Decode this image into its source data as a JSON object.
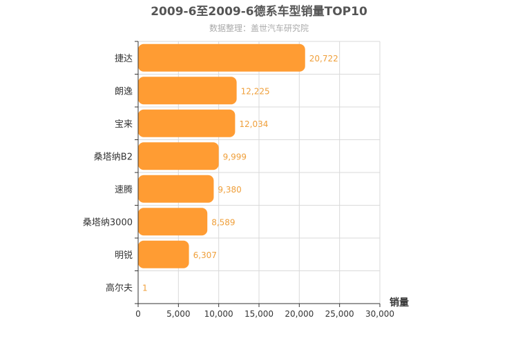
{
  "chart_data": {
    "type": "bar",
    "orientation": "horizontal",
    "title": "2009-6至2009-6德系车型销量TOP10",
    "subtitle": "数据整理：盖世汽车研究院",
    "categories": [
      "捷达",
      "朗逸",
      "宝来",
      "桑塔纳B2",
      "速腾",
      "桑塔纳3000",
      "明锐",
      "高尔夫"
    ],
    "values": [
      20722,
      12225,
      12034,
      9999,
      9380,
      8589,
      6307,
      1
    ],
    "value_labels": [
      "20,722",
      "12,225",
      "12,034",
      "9,999",
      "9,380",
      "8,589",
      "6,307",
      "1"
    ],
    "xlim": [
      0,
      30000
    ],
    "ticks": [
      0,
      5000,
      10000,
      15000,
      20000,
      25000,
      30000
    ],
    "tick_labels": [
      "0",
      "5,000",
      "10,000",
      "15,000",
      "20,000",
      "25,000",
      "30,000"
    ],
    "xlabel": "销量",
    "ylabel": "",
    "grid": true,
    "bar_color": "#ff9c33",
    "label_color": "#ef9f3a"
  }
}
